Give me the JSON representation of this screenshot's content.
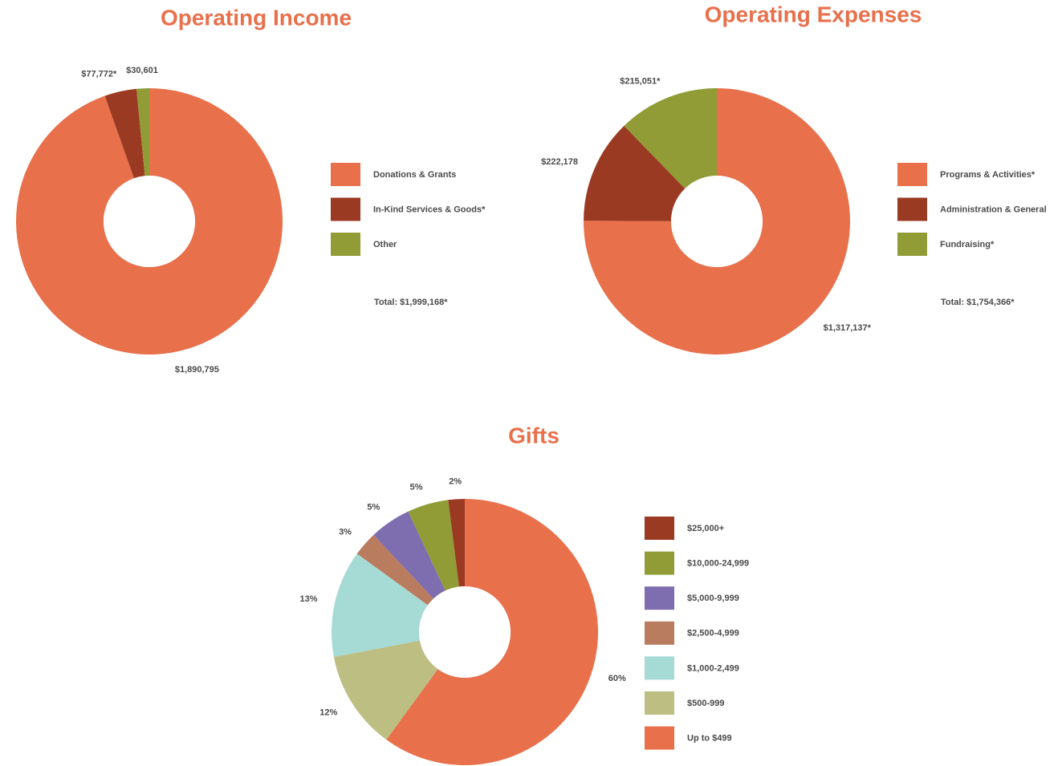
{
  "chart_data": [
    {
      "type": "pie",
      "title": "Operating Income",
      "categories": [
        "Donations & Grants",
        "In-Kind Services & Goods*",
        "Other"
      ],
      "values": [
        1890795,
        77772,
        30601
      ],
      "value_labels": [
        "$1,890,795",
        "$77,772*",
        "$30,601"
      ],
      "colors": [
        "#e8704b",
        "#9b3a22",
        "#919c37"
      ],
      "direction": "clockwise",
      "annotation": "Total: $1,999,168*"
    },
    {
      "type": "pie",
      "title": "Operating Expenses",
      "categories": [
        "Programs & Activities*",
        "Administration & General",
        "Fundraising*"
      ],
      "values": [
        1317137,
        222178,
        215051
      ],
      "value_labels": [
        "$1,317,137*",
        "$222,178",
        "$215,051*"
      ],
      "colors": [
        "#e8704b",
        "#9b3a22",
        "#919c37"
      ],
      "direction": "clockwise",
      "annotation": "Total: $1,754,366*"
    },
    {
      "type": "pie",
      "title": "Gifts",
      "categories": [
        "$25,000+",
        "$10,000-24,999",
        "$5,000-9,999",
        "$2,500-4,999",
        "$1,000-2,499",
        "$500-999",
        "Up to $499"
      ],
      "values": [
        2,
        5,
        5,
        3,
        13,
        12,
        60
      ],
      "value_labels": [
        "2%",
        "5%",
        "5%",
        "3%",
        "13%",
        "12%",
        "60%"
      ],
      "colors": [
        "#9b3a22",
        "#919c37",
        "#7e6daf",
        "#b97c5e",
        "#a5dad5",
        "#bdbe82",
        "#e8704b"
      ],
      "direction": "counterclockwise"
    }
  ]
}
